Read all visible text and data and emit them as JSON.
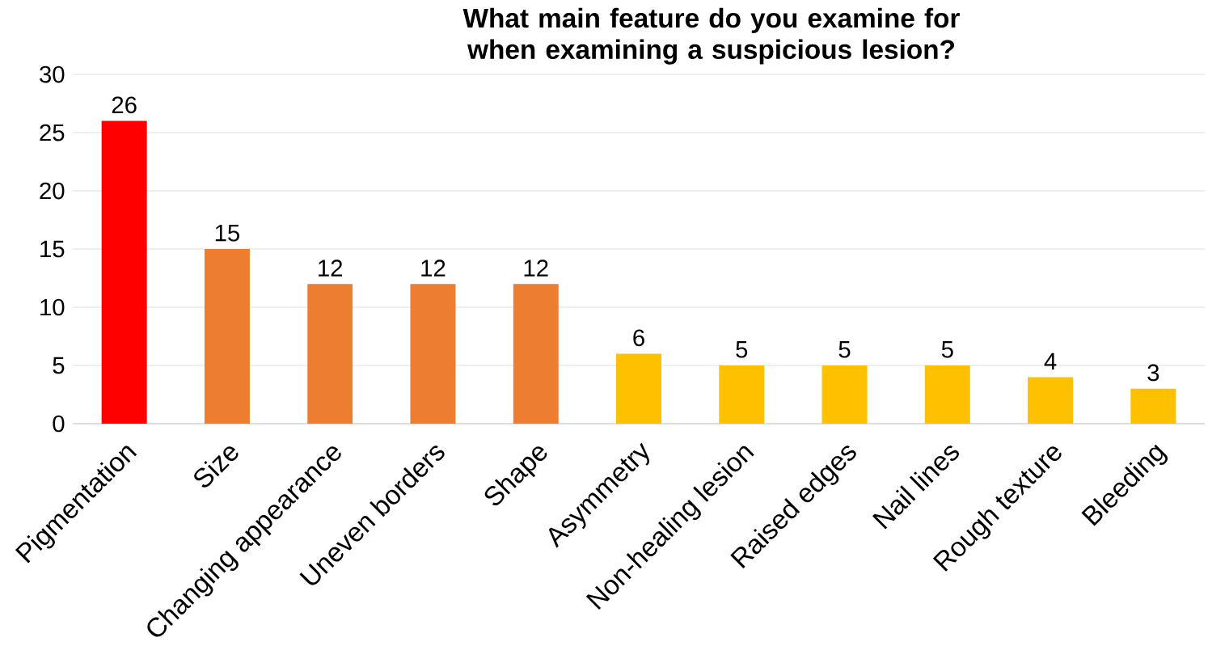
{
  "chart_data": {
    "type": "bar",
    "title": "What main feature do you examine for when examining a suspicious lesion?",
    "categories": [
      "Pigmentation",
      "Size",
      "Changing appearance",
      "Uneven borders",
      "Shape",
      "Asymmetry",
      "Non-healing lesion",
      "Raised edges",
      "Nail lines",
      "Rough texture",
      "Bleeding"
    ],
    "values": [
      26,
      15,
      12,
      12,
      12,
      6,
      5,
      5,
      5,
      4,
      3
    ],
    "colors": [
      "#ff0000",
      "#ed7d31",
      "#ed7d31",
      "#ed7d31",
      "#ed7d31",
      "#ffc000",
      "#ffc000",
      "#ffc000",
      "#ffc000",
      "#ffc000",
      "#ffc000"
    ],
    "ylim": [
      0,
      30
    ],
    "yticks": [
      0,
      5,
      10,
      15,
      20,
      25,
      30
    ],
    "grid": "y",
    "data_labels": true
  }
}
